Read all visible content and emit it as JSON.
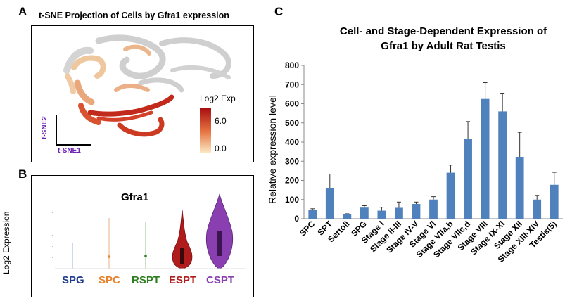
{
  "panels": {
    "a": {
      "letter": "A",
      "title": "t-SNE Projection of Cells by Gfra1 expression",
      "legend_title": "Log2 Exp",
      "legend_max": "6.0",
      "legend_min": "0.0",
      "xaxis": "t-SNE1",
      "yaxis": "t-SNE2",
      "colors": {
        "low": "#f7e6c3",
        "mid": "#e0623a",
        "high": "#a80f10",
        "background": "#cfcfcf",
        "axis_label": "#6a1fb3"
      }
    },
    "b": {
      "letter": "B",
      "title": "Gfra1",
      "ylabel": "Log2 Expression",
      "groups": [
        {
          "label": "SPG",
          "color": "#1f3c8c"
        },
        {
          "label": "SPC",
          "color": "#e8822a"
        },
        {
          "label": "RSPT",
          "color": "#2e7d1f"
        },
        {
          "label": "ESPT",
          "color": "#b01c1c"
        },
        {
          "label": "CSPT",
          "color": "#8a3fb0"
        }
      ]
    },
    "c": {
      "letter": "C"
    }
  },
  "chart_data": {
    "type": "bar",
    "title": "Cell- and Stage-Dependent Expression of Gfra1 by Adult Rat Testis",
    "title_lines": [
      "Cell- and Stage-Dependent Expression of",
      "Gfra1 by Adult Rat Testis"
    ],
    "xlabel": "",
    "ylabel": "Relative expression level",
    "ylim": [
      0,
      800
    ],
    "yticks": [
      "0",
      "100",
      "200",
      "300",
      "400",
      "500",
      "600",
      "700",
      "800"
    ],
    "categories": [
      "SPC",
      "SPT",
      "Sertoli",
      "SPG",
      "Stage I",
      "Stage II-III",
      "Stage IV-V",
      "Stage VI",
      "Stage VIIa,b",
      "Stage VIIc,d",
      "Stage VIII",
      "Stage IX-XI",
      "Stage XII",
      "Stage XIII-XIV",
      "Testis(5)"
    ],
    "values": [
      47,
      158,
      22,
      58,
      42,
      57,
      77,
      100,
      240,
      415,
      625,
      560,
      323,
      100,
      177
    ],
    "errors": [
      5,
      75,
      4,
      10,
      18,
      30,
      10,
      15,
      40,
      92,
      85,
      95,
      128,
      22,
      65
    ],
    "bar_color": "#4f81bd",
    "grid": false
  }
}
